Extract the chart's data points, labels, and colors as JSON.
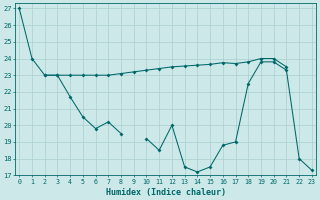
{
  "bg_color": "#cce8e8",
  "grid_color": "#aacfcf",
  "line_color": "#006868",
  "xlabel": "Humidex (Indice chaleur)",
  "ylim_min": 17,
  "ylim_max": 27,
  "xlim_min": -0.3,
  "xlim_max": 23.3,
  "yticks": [
    17,
    18,
    19,
    20,
    21,
    22,
    23,
    24,
    25,
    26,
    27
  ],
  "xticks": [
    0,
    1,
    2,
    3,
    4,
    5,
    6,
    7,
    8,
    9,
    10,
    11,
    12,
    13,
    14,
    15,
    16,
    17,
    18,
    19,
    20,
    21,
    22,
    23
  ],
  "y1": [
    27,
    24,
    23,
    23,
    23,
    23,
    23,
    23,
    23.1,
    23.2,
    23.3,
    23.4,
    23.5,
    23.55,
    23.6,
    23.65,
    23.75,
    23.7,
    23.8,
    24.0,
    24.0,
    23.5,
    null,
    null
  ],
  "y2": [
    null,
    null,
    23,
    23,
    21.7,
    20.5,
    19.8,
    20.2,
    19.5,
    null,
    null,
    null,
    null,
    null,
    null,
    null,
    null,
    null,
    null,
    null,
    null,
    null,
    null,
    null
  ],
  "y3": [
    null,
    null,
    null,
    null,
    null,
    null,
    null,
    null,
    null,
    null,
    19.2,
    18.5,
    20.0,
    17.5,
    17.2,
    17.5,
    18.8,
    19.0,
    22.5,
    23.8,
    23.8,
    23.3,
    18.0,
    17.3
  ],
  "marker_size": 2.0,
  "line_width": 0.75,
  "tick_fontsize": 4.8,
  "xlabel_fontsize": 6.0
}
